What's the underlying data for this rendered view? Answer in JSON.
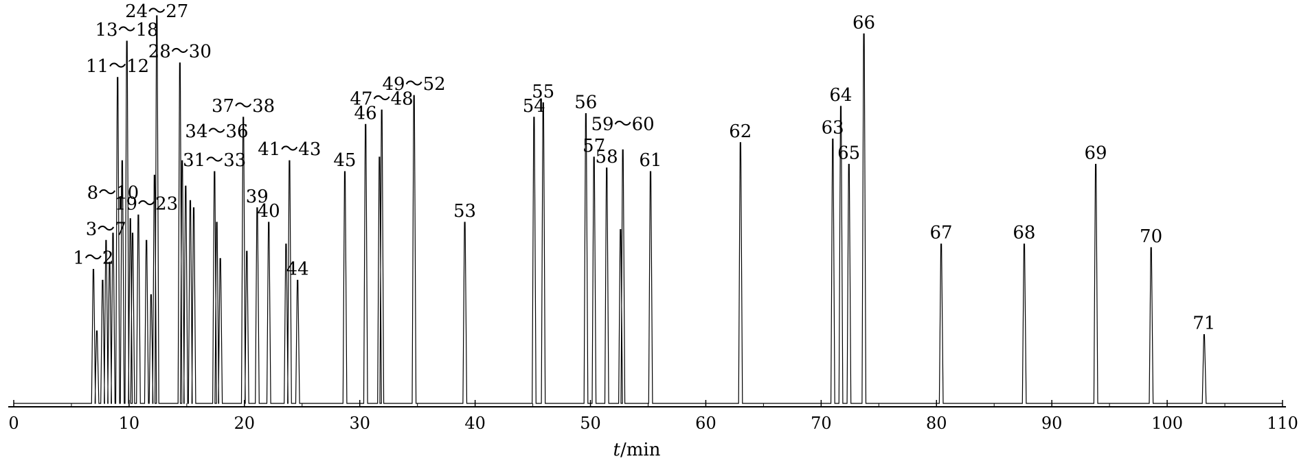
{
  "chart_data": {
    "type": "line",
    "title": "",
    "xlabel_var": "t",
    "xlabel_unit": "/min",
    "ylabel": "",
    "xlim": [
      0,
      110
    ],
    "ylim": [
      0,
      1
    ],
    "x_ticks": [
      0,
      10,
      20,
      30,
      40,
      50,
      60,
      70,
      80,
      90,
      100,
      110
    ],
    "grid": false,
    "legend": "none",
    "line_color": "#000000",
    "series": [
      {
        "peaks": [
          {
            "x": 6.9,
            "y": 0.37
          },
          {
            "x": 7.2,
            "y": 0.2
          },
          {
            "x": 7.7,
            "y": 0.34
          },
          {
            "x": 8.0,
            "y": 0.45
          },
          {
            "x": 8.3,
            "y": 0.39
          },
          {
            "x": 8.6,
            "y": 0.47
          },
          {
            "x": 9.0,
            "y": 0.9
          },
          {
            "x": 9.4,
            "y": 0.67
          },
          {
            "x": 9.8,
            "y": 1.0
          },
          {
            "x": 10.1,
            "y": 0.51
          },
          {
            "x": 10.3,
            "y": 0.47
          },
          {
            "x": 10.8,
            "y": 0.52
          },
          {
            "x": 11.5,
            "y": 0.45
          },
          {
            "x": 11.9,
            "y": 0.3
          },
          {
            "x": 12.2,
            "y": 0.63
          },
          {
            "x": 12.4,
            "y": 1.07
          },
          {
            "x": 14.4,
            "y": 0.94
          },
          {
            "x": 14.6,
            "y": 0.67
          },
          {
            "x": 14.9,
            "y": 0.6
          },
          {
            "x": 15.3,
            "y": 0.56
          },
          {
            "x": 15.6,
            "y": 0.54
          },
          {
            "x": 17.4,
            "y": 0.64
          },
          {
            "x": 17.6,
            "y": 0.5
          },
          {
            "x": 17.9,
            "y": 0.4
          },
          {
            "x": 19.9,
            "y": 0.79
          },
          {
            "x": 20.2,
            "y": 0.42
          },
          {
            "x": 21.1,
            "y": 0.54
          },
          {
            "x": 22.1,
            "y": 0.5
          },
          {
            "x": 23.6,
            "y": 0.44
          },
          {
            "x": 23.9,
            "y": 0.67
          },
          {
            "x": 24.6,
            "y": 0.34
          },
          {
            "x": 28.7,
            "y": 0.64
          },
          {
            "x": 30.5,
            "y": 0.77
          },
          {
            "x": 31.7,
            "y": 0.68
          },
          {
            "x": 31.9,
            "y": 0.81
          },
          {
            "x": 34.7,
            "y": 0.85
          },
          {
            "x": 39.1,
            "y": 0.5
          },
          {
            "x": 45.1,
            "y": 0.79
          },
          {
            "x": 45.9,
            "y": 0.83
          },
          {
            "x": 49.6,
            "y": 0.8
          },
          {
            "x": 50.3,
            "y": 0.68
          },
          {
            "x": 51.4,
            "y": 0.65
          },
          {
            "x": 52.6,
            "y": 0.48
          },
          {
            "x": 52.8,
            "y": 0.7
          },
          {
            "x": 55.2,
            "y": 0.64
          },
          {
            "x": 63.0,
            "y": 0.72
          },
          {
            "x": 71.0,
            "y": 0.73
          },
          {
            "x": 71.7,
            "y": 0.82
          },
          {
            "x": 72.4,
            "y": 0.66
          },
          {
            "x": 73.7,
            "y": 1.02
          },
          {
            "x": 80.4,
            "y": 0.44
          },
          {
            "x": 87.6,
            "y": 0.44
          },
          {
            "x": 93.8,
            "y": 0.66
          },
          {
            "x": 98.6,
            "y": 0.43
          },
          {
            "x": 103.2,
            "y": 0.19
          }
        ]
      }
    ],
    "annotations": [
      {
        "text": "1～2",
        "x": 6.9,
        "y": 0.37
      },
      {
        "text": "3～7",
        "x": 8.0,
        "y": 0.45
      },
      {
        "text": "8～10",
        "x": 8.6,
        "y": 0.55
      },
      {
        "text": "11～12",
        "x": 9.0,
        "y": 0.9
      },
      {
        "text": "13～18",
        "x": 9.8,
        "y": 1.0
      },
      {
        "text": "19～23",
        "x": 11.5,
        "y": 0.52
      },
      {
        "text": "24～27",
        "x": 12.4,
        "y": 1.07
      },
      {
        "text": "28～30",
        "x": 14.4,
        "y": 0.94
      },
      {
        "text": "31～33",
        "x": 17.4,
        "y": 0.64
      },
      {
        "text": "34～36",
        "x": 17.6,
        "y": 0.72
      },
      {
        "text": "37～38",
        "x": 19.9,
        "y": 0.79
      },
      {
        "text": "39",
        "x": 21.1,
        "y": 0.54
      },
      {
        "text": "40",
        "x": 22.1,
        "y": 0.5
      },
      {
        "text": "41～43",
        "x": 23.9,
        "y": 0.67
      },
      {
        "text": "44",
        "x": 24.6,
        "y": 0.34
      },
      {
        "text": "45",
        "x": 28.7,
        "y": 0.64
      },
      {
        "text": "46",
        "x": 30.5,
        "y": 0.77
      },
      {
        "text": "47～48",
        "x": 31.9,
        "y": 0.81
      },
      {
        "text": "49～52",
        "x": 34.7,
        "y": 0.85
      },
      {
        "text": "53",
        "x": 39.1,
        "y": 0.5
      },
      {
        "text": "54",
        "x": 45.1,
        "y": 0.79
      },
      {
        "text": "55",
        "x": 45.9,
        "y": 0.83
      },
      {
        "text": "56",
        "x": 49.6,
        "y": 0.8
      },
      {
        "text": "57",
        "x": 50.3,
        "y": 0.68
      },
      {
        "text": "58",
        "x": 51.4,
        "y": 0.65
      },
      {
        "text": "59～60",
        "x": 52.8,
        "y": 0.74
      },
      {
        "text": "61",
        "x": 55.2,
        "y": 0.64
      },
      {
        "text": "62",
        "x": 63.0,
        "y": 0.72
      },
      {
        "text": "63",
        "x": 71.0,
        "y": 0.73
      },
      {
        "text": "64",
        "x": 71.7,
        "y": 0.82
      },
      {
        "text": "65",
        "x": 72.4,
        "y": 0.66
      },
      {
        "text": "66",
        "x": 73.7,
        "y": 1.02
      },
      {
        "text": "67",
        "x": 80.4,
        "y": 0.44
      },
      {
        "text": "68",
        "x": 87.6,
        "y": 0.44
      },
      {
        "text": "69",
        "x": 93.8,
        "y": 0.66
      },
      {
        "text": "70",
        "x": 98.6,
        "y": 0.43
      },
      {
        "text": "71",
        "x": 103.2,
        "y": 0.19
      }
    ]
  }
}
